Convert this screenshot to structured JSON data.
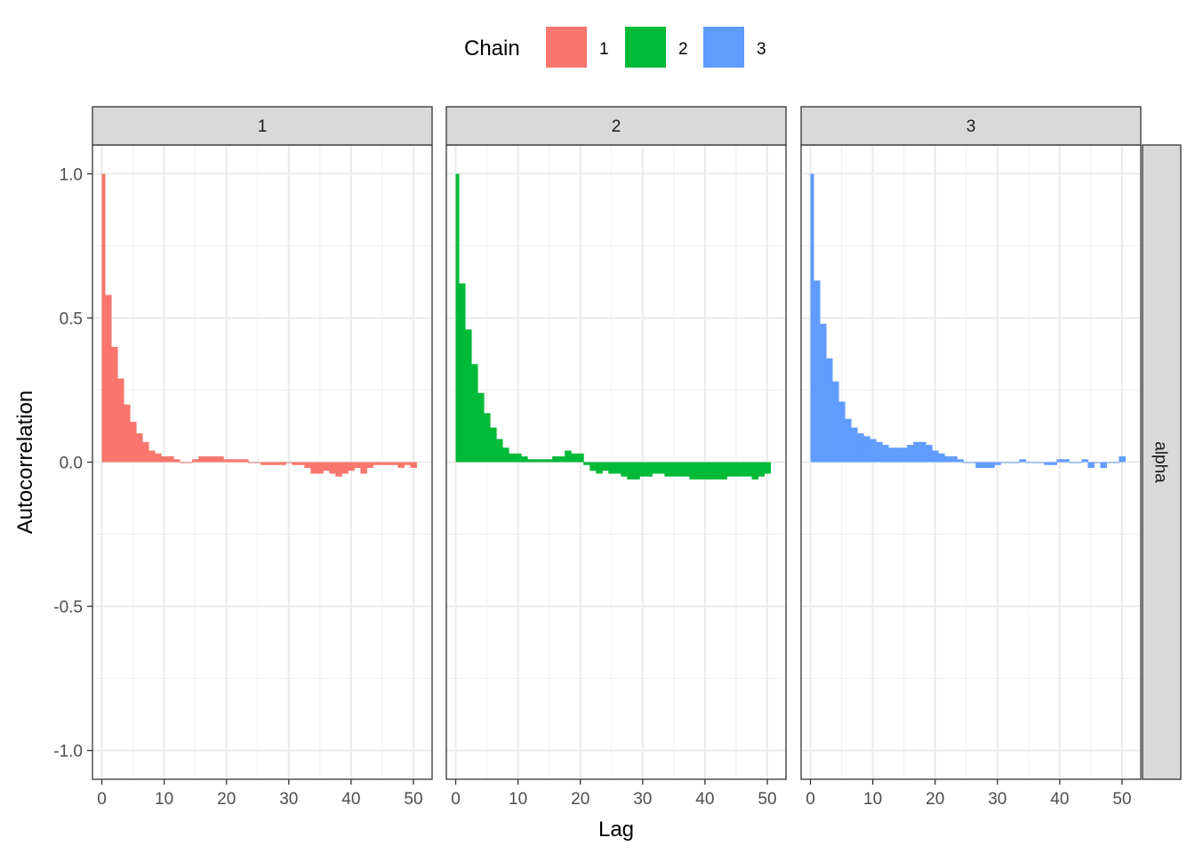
{
  "chart_data": {
    "type": "bar",
    "xlabel": "Lag",
    "ylabel": "Autocorrelation",
    "xlim": [
      -1.5,
      53
    ],
    "ylim": [
      -1.1,
      1.1
    ],
    "x_ticks": [
      0,
      10,
      20,
      30,
      40,
      50
    ],
    "y_ticks": [
      -1.0,
      -0.5,
      0.0,
      0.5,
      1.0
    ],
    "y_tick_labels": [
      "-1.0",
      "-0.5",
      "0.0",
      "0.5",
      "1.0"
    ],
    "grid": true,
    "legend": {
      "title": "Chain",
      "position": "top"
    },
    "row_strip": "alpha",
    "x": [
      0,
      1,
      2,
      3,
      4,
      5,
      6,
      7,
      8,
      9,
      10,
      11,
      12,
      13,
      14,
      15,
      16,
      17,
      18,
      19,
      20,
      21,
      22,
      23,
      24,
      25,
      26,
      27,
      28,
      29,
      30,
      31,
      32,
      33,
      34,
      35,
      36,
      37,
      38,
      39,
      40,
      41,
      42,
      43,
      44,
      45,
      46,
      47,
      48,
      49,
      50
    ],
    "series": [
      {
        "name": "1",
        "color": "#F8766D",
        "values": [
          1.0,
          0.58,
          0.4,
          0.29,
          0.2,
          0.14,
          0.1,
          0.07,
          0.04,
          0.03,
          0.02,
          0.02,
          0.01,
          0.0,
          0.0,
          0.01,
          0.02,
          0.02,
          0.02,
          0.02,
          0.01,
          0.01,
          0.01,
          0.01,
          0.0,
          0.0,
          -0.01,
          -0.01,
          -0.01,
          -0.01,
          0.0,
          -0.01,
          -0.01,
          -0.02,
          -0.04,
          -0.04,
          -0.03,
          -0.04,
          -0.05,
          -0.04,
          -0.03,
          -0.02,
          -0.04,
          -0.02,
          -0.01,
          -0.01,
          -0.01,
          -0.01,
          -0.02,
          -0.01,
          -0.02
        ]
      },
      {
        "name": "2",
        "color": "#00BA38",
        "values": [
          1.0,
          0.62,
          0.46,
          0.34,
          0.24,
          0.17,
          0.12,
          0.08,
          0.05,
          0.03,
          0.03,
          0.02,
          0.01,
          0.01,
          0.01,
          0.01,
          0.02,
          0.02,
          0.04,
          0.03,
          0.03,
          -0.01,
          -0.03,
          -0.04,
          -0.03,
          -0.04,
          -0.04,
          -0.05,
          -0.06,
          -0.06,
          -0.05,
          -0.05,
          -0.04,
          -0.04,
          -0.05,
          -0.05,
          -0.05,
          -0.05,
          -0.06,
          -0.06,
          -0.06,
          -0.06,
          -0.06,
          -0.06,
          -0.05,
          -0.05,
          -0.05,
          -0.05,
          -0.06,
          -0.05,
          -0.04
        ]
      },
      {
        "name": "3",
        "color": "#619CFF",
        "values": [
          1.0,
          0.63,
          0.48,
          0.36,
          0.28,
          0.21,
          0.15,
          0.12,
          0.1,
          0.09,
          0.08,
          0.07,
          0.06,
          0.05,
          0.05,
          0.05,
          0.06,
          0.07,
          0.07,
          0.06,
          0.04,
          0.03,
          0.02,
          0.02,
          0.01,
          0.0,
          0.0,
          -0.02,
          -0.02,
          -0.02,
          -0.01,
          0.0,
          0.0,
          0.0,
          0.01,
          0.0,
          0.0,
          0.0,
          -0.01,
          -0.01,
          0.01,
          0.01,
          0.0,
          0.0,
          0.01,
          -0.02,
          0.0,
          -0.02,
          0.0,
          0.0,
          0.02
        ]
      }
    ]
  }
}
